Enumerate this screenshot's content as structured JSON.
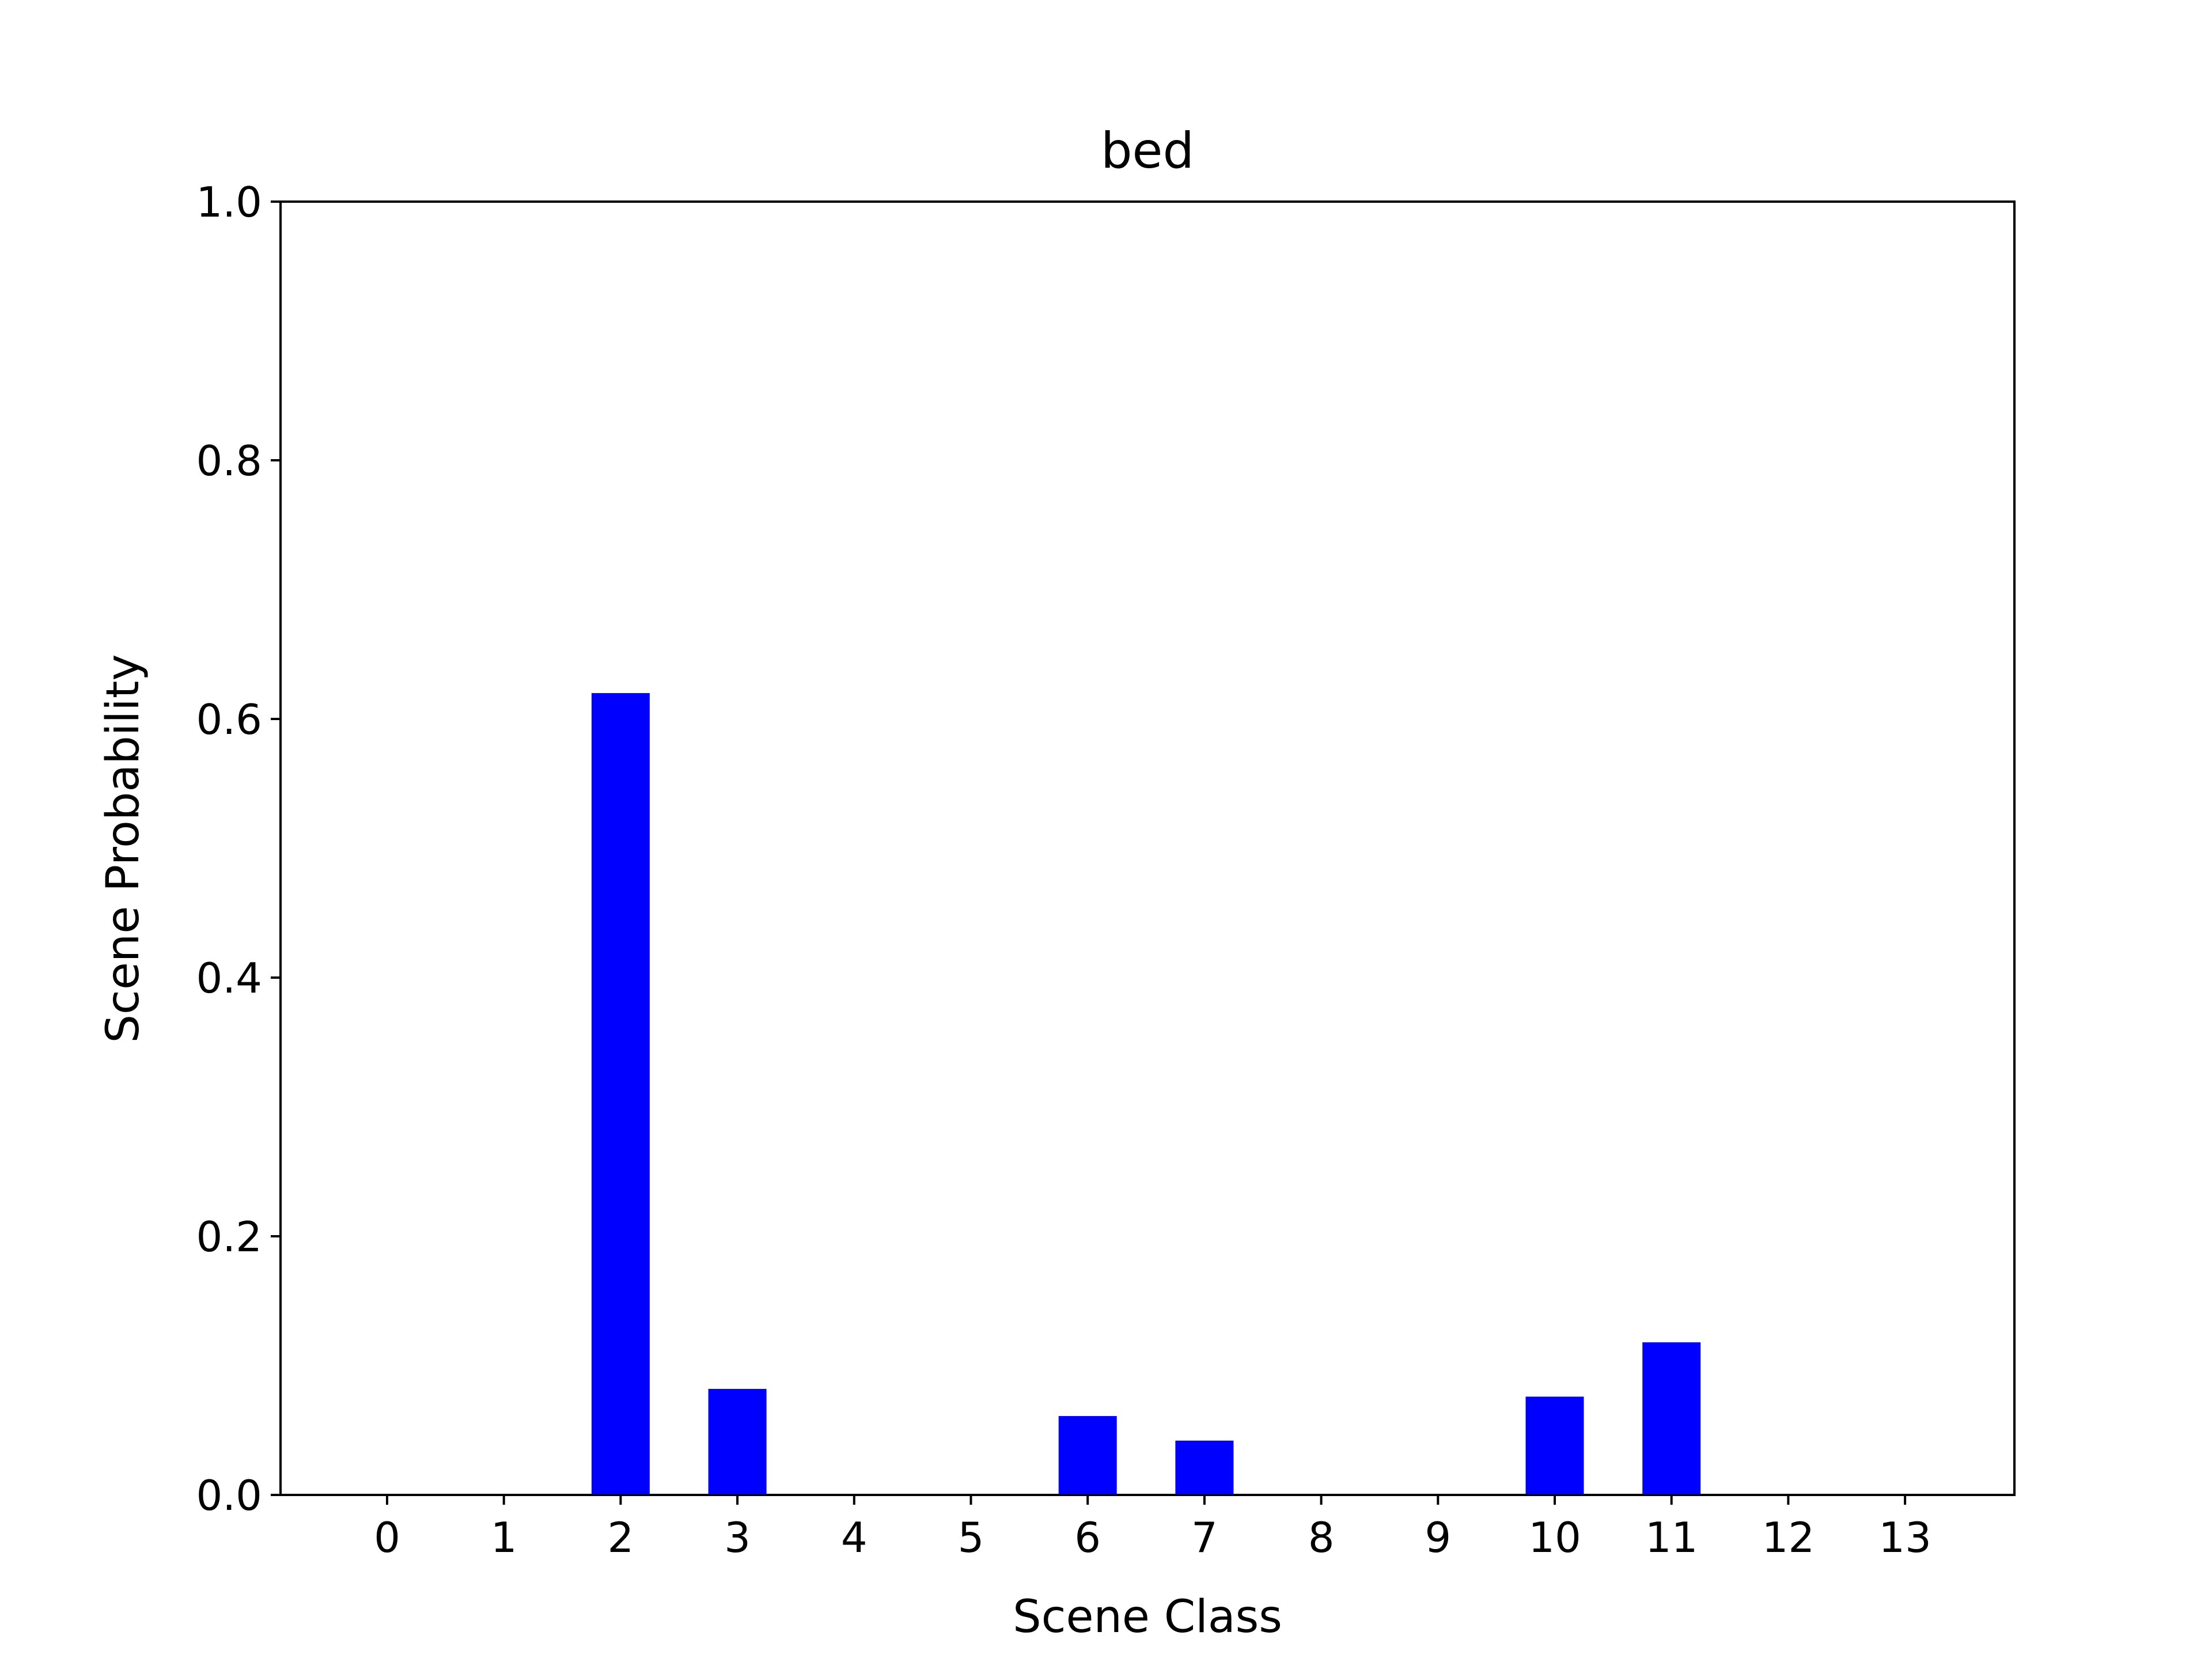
{
  "chart_data": {
    "type": "bar",
    "title": "bed",
    "xlabel": "Scene Class",
    "ylabel": "Scene Probability",
    "categories": [
      "0",
      "1",
      "2",
      "3",
      "4",
      "5",
      "6",
      "7",
      "8",
      "9",
      "10",
      "11",
      "12",
      "13"
    ],
    "values": [
      0,
      0,
      0.62,
      0.082,
      0,
      0,
      0.061,
      0.042,
      0,
      0,
      0.076,
      0.118,
      0,
      0
    ],
    "ylim": [
      0,
      1.0
    ],
    "yticks": [
      "0.0",
      "0.2",
      "0.4",
      "0.6",
      "0.8",
      "1.0"
    ],
    "ytick_values": [
      0,
      0.2,
      0.4,
      0.6,
      0.8,
      1.0
    ],
    "bar_color": "#0000ff",
    "grid": false,
    "legend": "none"
  }
}
